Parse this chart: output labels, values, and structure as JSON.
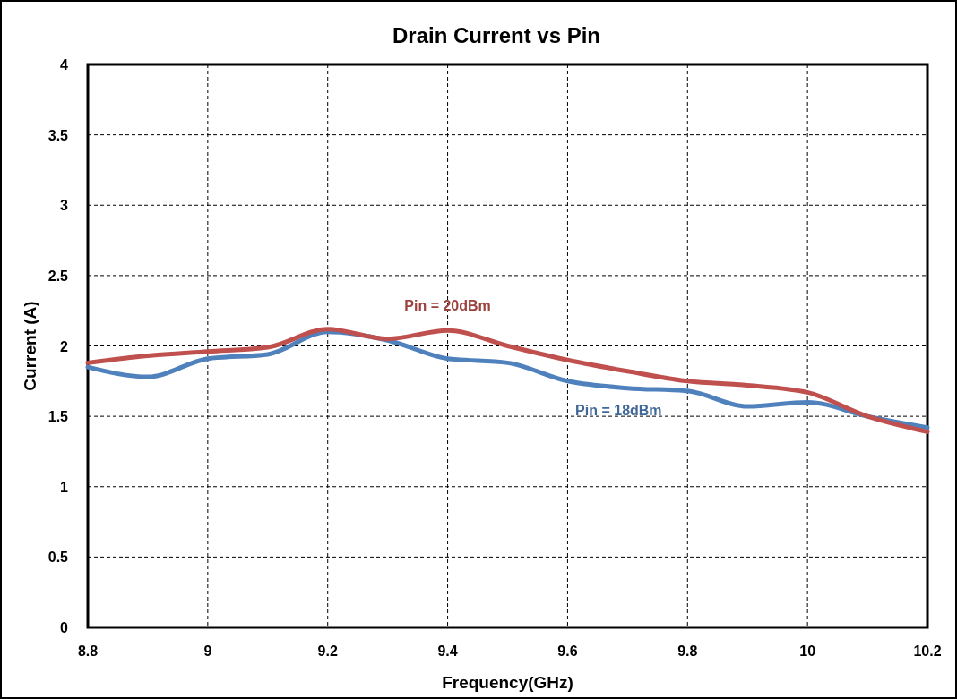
{
  "chart_data": {
    "type": "line",
    "title": "Drain Current vs Pin",
    "xlabel": "Frequency(GHz)",
    "ylabel": "Current (A)",
    "x": [
      8.8,
      8.9,
      9.0,
      9.1,
      9.2,
      9.3,
      9.4,
      9.5,
      9.6,
      9.7,
      9.8,
      9.9,
      10.0,
      10.1,
      10.2
    ],
    "series": [
      {
        "name": "Pin = 18dBm",
        "color": "#4f81bd",
        "values": [
          1.85,
          1.78,
          1.91,
          1.94,
          2.1,
          2.04,
          1.91,
          1.88,
          1.75,
          1.7,
          1.68,
          1.57,
          1.6,
          1.5,
          1.42
        ]
      },
      {
        "name": "Pin = 20dBm",
        "color": "#c0504d",
        "values": [
          1.88,
          1.93,
          1.96,
          1.99,
          2.12,
          2.05,
          2.11,
          2.0,
          1.9,
          1.82,
          1.75,
          1.72,
          1.67,
          1.5,
          1.39
        ]
      }
    ],
    "xlim": [
      8.8,
      10.2
    ],
    "xticks": [
      8.8,
      9,
      9.2,
      9.4,
      9.6,
      9.8,
      10,
      10.2
    ],
    "ylim": [
      0,
      4
    ],
    "yticks": [
      0,
      0.5,
      1,
      1.5,
      2,
      2.5,
      3,
      3.5,
      4
    ],
    "grid": true,
    "marker": "none",
    "line_style": "solid"
  }
}
